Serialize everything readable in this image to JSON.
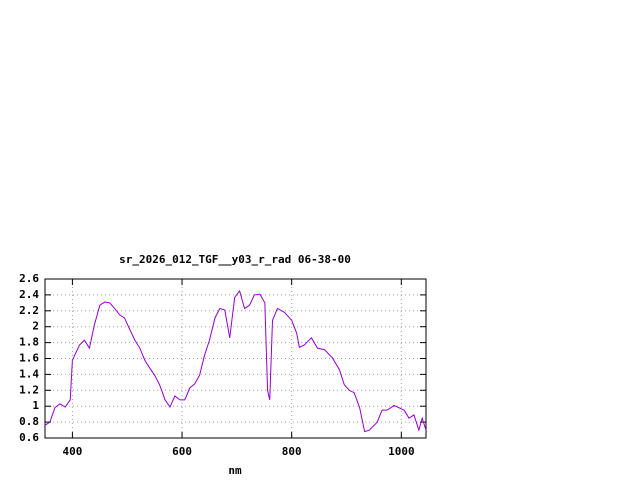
{
  "chart_data": {
    "type": "line",
    "title": "sr_2026_012_TGF__y03_r_rad 06-38-00",
    "x_label": "nm",
    "x": [
      350,
      359,
      368,
      377,
      387,
      396,
      400,
      413,
      422,
      431,
      440,
      450,
      459,
      468,
      477,
      486,
      495,
      505,
      514,
      523,
      532,
      541,
      550,
      559,
      569,
      578,
      587,
      596,
      605,
      614,
      623,
      632,
      641,
      650,
      660,
      669,
      678,
      687,
      696,
      705,
      714,
      723,
      732,
      742,
      751,
      756,
      760,
      765,
      774,
      787,
      800,
      809,
      814,
      823,
      836,
      847,
      860,
      874,
      887,
      896,
      905,
      914,
      924,
      933,
      942,
      956,
      965,
      974,
      987,
      996,
      1005,
      1014,
      1023,
      1032,
      1038,
      1045
    ],
    "series": [
      {
        "color": "#9400d3",
        "values": [
          0.76,
          0.8,
          0.98,
          1.03,
          0.99,
          1.08,
          1.58,
          1.77,
          1.83,
          1.73,
          2.02,
          2.27,
          2.31,
          2.3,
          2.23,
          2.15,
          2.11,
          1.96,
          1.83,
          1.73,
          1.58,
          1.48,
          1.39,
          1.27,
          1.08,
          0.99,
          1.13,
          1.08,
          1.08,
          1.23,
          1.28,
          1.39,
          1.64,
          1.83,
          2.11,
          2.23,
          2.21,
          1.86,
          2.37,
          2.45,
          2.23,
          2.27,
          2.4,
          2.41,
          2.3,
          1.2,
          1.08,
          2.08,
          2.23,
          2.18,
          2.08,
          1.92,
          1.74,
          1.77,
          1.86,
          1.73,
          1.71,
          1.61,
          1.46,
          1.27,
          1.2,
          1.17,
          0.98,
          0.68,
          0.7,
          0.8,
          0.95,
          0.95,
          1.01,
          0.98,
          0.95,
          0.85,
          0.89,
          0.7,
          0.85,
          0.7
        ]
      }
    ],
    "xlim": [
      350,
      1045
    ],
    "ylim": [
      0.6,
      2.6
    ],
    "xticks": [
      400,
      600,
      800,
      1000
    ],
    "yticks": [
      0.6,
      0.8,
      1,
      1.2,
      1.4,
      1.6,
      1.8,
      2,
      2.2,
      2.4,
      2.6
    ],
    "grid": true
  }
}
